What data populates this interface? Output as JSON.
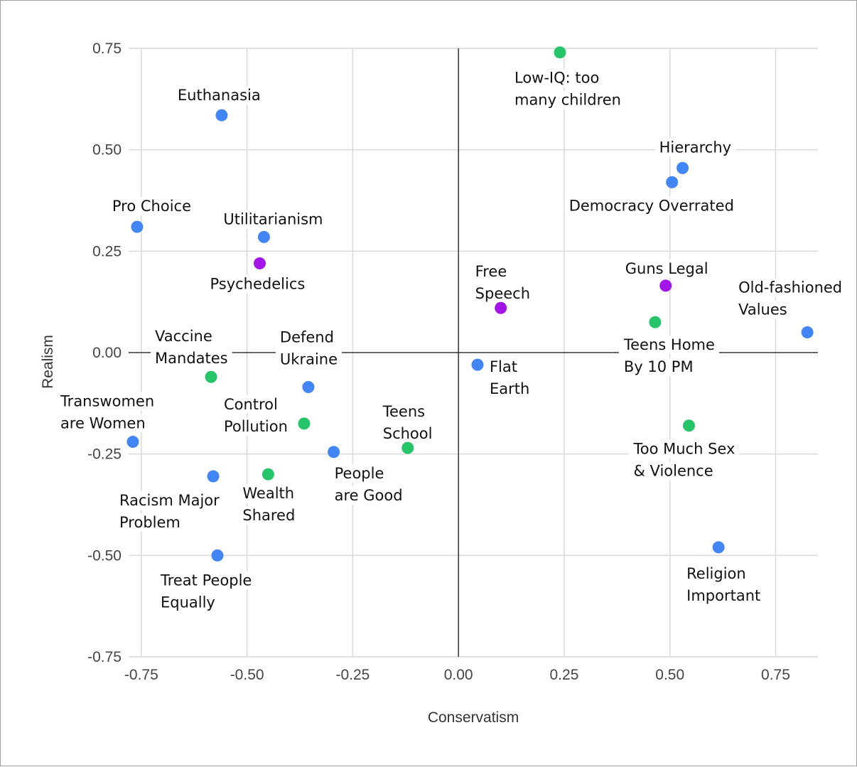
{
  "chart_data": {
    "type": "scatter",
    "title": "",
    "xlabel": "Conservatism",
    "ylabel": "Realism",
    "xlim": [
      -0.78,
      0.85
    ],
    "ylim": [
      -0.75,
      0.75
    ],
    "xticks": [
      "-0.75",
      "-0.50",
      "-0.25",
      "0.00",
      "0.25",
      "0.50",
      "0.75"
    ],
    "yticks": [
      "0.75",
      "0.50",
      "0.25",
      "0.00",
      "-0.25",
      "-0.50",
      "-0.75"
    ],
    "grid": true,
    "legend": "none",
    "colors": {
      "blue": "#4285f4",
      "green": "#27c56a",
      "purple": "#a314e8"
    },
    "points": [
      {
        "label": "Euthanasia",
        "lines": [
          "Euthanasia"
        ],
        "x": -0.56,
        "y": 0.585,
        "color": "blue"
      },
      {
        "label": "Pro Choice",
        "lines": [
          "Pro Choice"
        ],
        "x": -0.76,
        "y": 0.31,
        "color": "blue"
      },
      {
        "label": "Utilitarianism",
        "lines": [
          "Utilitarianism"
        ],
        "x": -0.46,
        "y": 0.285,
        "color": "blue"
      },
      {
        "label": "Psychedelics",
        "lines": [
          "Psychedelics"
        ],
        "x": -0.47,
        "y": 0.22,
        "color": "purple"
      },
      {
        "label": "Vaccine Mandates",
        "lines": [
          "Vaccine",
          "Mandates"
        ],
        "x": -0.585,
        "y": -0.06,
        "color": "green"
      },
      {
        "label": "Defend Ukraine",
        "lines": [
          "Defend",
          "Ukraine"
        ],
        "x": -0.355,
        "y": -0.085,
        "color": "blue"
      },
      {
        "label": "Transwomen are Women",
        "lines": [
          "Transwomen",
          "are Women"
        ],
        "x": -0.77,
        "y": -0.22,
        "color": "blue"
      },
      {
        "label": "Control Pollution",
        "lines": [
          "Control",
          "Pollution"
        ],
        "x": -0.365,
        "y": -0.175,
        "color": "green"
      },
      {
        "label": "People are Good",
        "lines": [
          "People",
          "are Good"
        ],
        "x": -0.295,
        "y": -0.245,
        "color": "blue"
      },
      {
        "label": "Teens School",
        "lines": [
          "Teens",
          "School"
        ],
        "x": -0.12,
        "y": -0.235,
        "color": "green"
      },
      {
        "label": "Racism Major Problem",
        "lines": [
          "Racism Major",
          "Problem"
        ],
        "x": -0.58,
        "y": -0.305,
        "color": "blue"
      },
      {
        "label": "Wealth Shared",
        "lines": [
          "Wealth",
          "Shared"
        ],
        "x": -0.45,
        "y": -0.3,
        "color": "green"
      },
      {
        "label": "Treat People Equally",
        "lines": [
          "Treat People",
          "Equally"
        ],
        "x": -0.57,
        "y": -0.5,
        "color": "blue"
      },
      {
        "label": "Low-IQ: too many children",
        "lines": [
          "Low-IQ: too",
          "many children"
        ],
        "x": 0.24,
        "y": 0.74,
        "color": "green"
      },
      {
        "label": "Hierarchy",
        "lines": [
          "Hierarchy"
        ],
        "x": 0.53,
        "y": 0.455,
        "color": "blue"
      },
      {
        "label": "Democracy Overrated",
        "lines": [
          "Democracy Overrated"
        ],
        "x": 0.505,
        "y": 0.42,
        "color": "blue"
      },
      {
        "label": "Free Speech",
        "lines": [
          "Free",
          "Speech"
        ],
        "x": 0.1,
        "y": 0.11,
        "color": "purple"
      },
      {
        "label": "Guns Legal",
        "lines": [
          "Guns Legal"
        ],
        "x": 0.49,
        "y": 0.165,
        "color": "purple"
      },
      {
        "label": "Old-fashioned Values",
        "lines": [
          "Old-fashioned",
          "Values"
        ],
        "x": 0.825,
        "y": 0.05,
        "color": "blue"
      },
      {
        "label": "Teens Home By 10 PM",
        "lines": [
          "Teens Home",
          "By 10 PM"
        ],
        "x": 0.465,
        "y": 0.075,
        "color": "green"
      },
      {
        "label": "Flat Earth",
        "lines": [
          "Flat",
          "Earth"
        ],
        "x": 0.045,
        "y": -0.03,
        "color": "blue"
      },
      {
        "label": "Too Much Sex & Violence",
        "lines": [
          "Too Much Sex",
          "& Violence"
        ],
        "x": 0.545,
        "y": -0.18,
        "color": "green"
      },
      {
        "label": "Religion Important",
        "lines": [
          "Religion",
          "Important"
        ],
        "x": 0.615,
        "y": -0.48,
        "color": "blue"
      }
    ]
  }
}
